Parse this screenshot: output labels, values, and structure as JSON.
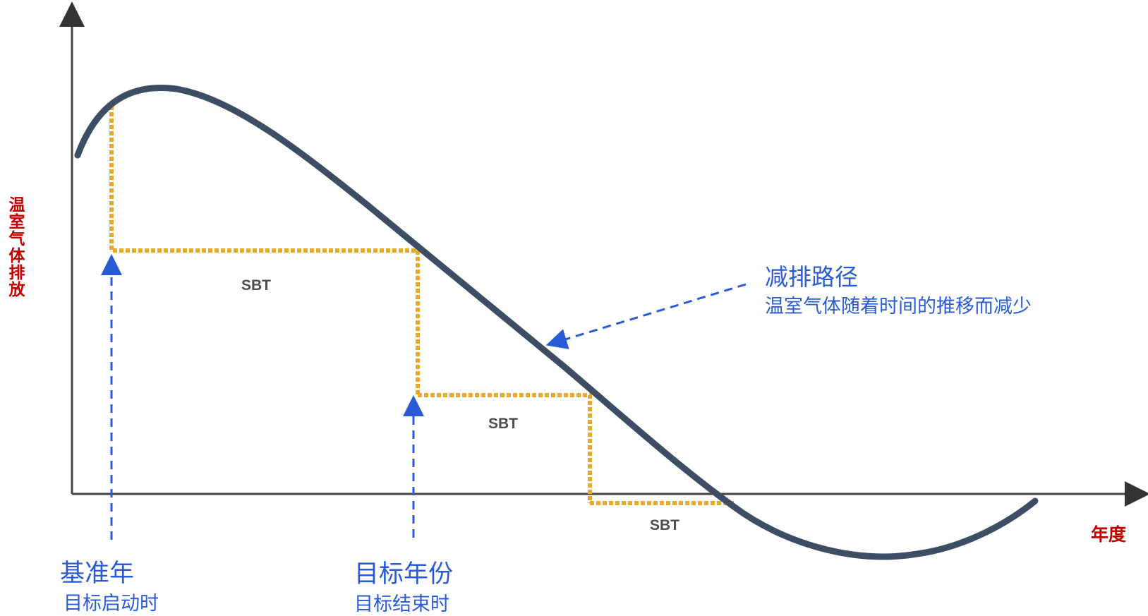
{
  "axes": {
    "y_label": "温室气体排放",
    "x_label": "年度",
    "label_color": "#c00000"
  },
  "curve": {
    "color": "#3d4d63",
    "name": "减排路径"
  },
  "targets": {
    "color": "#e8a92a",
    "labels": [
      "SBT",
      "SBT",
      "SBT"
    ]
  },
  "annotations": {
    "color": "#2a5bd7",
    "pathway": {
      "title": "减排路径",
      "desc": "温室气体随着时间的推移而减少"
    },
    "base_year": {
      "title": "基准年",
      "desc": "目标启动时"
    },
    "target_year": {
      "title": "目标年份",
      "desc": "目标结束时"
    }
  }
}
